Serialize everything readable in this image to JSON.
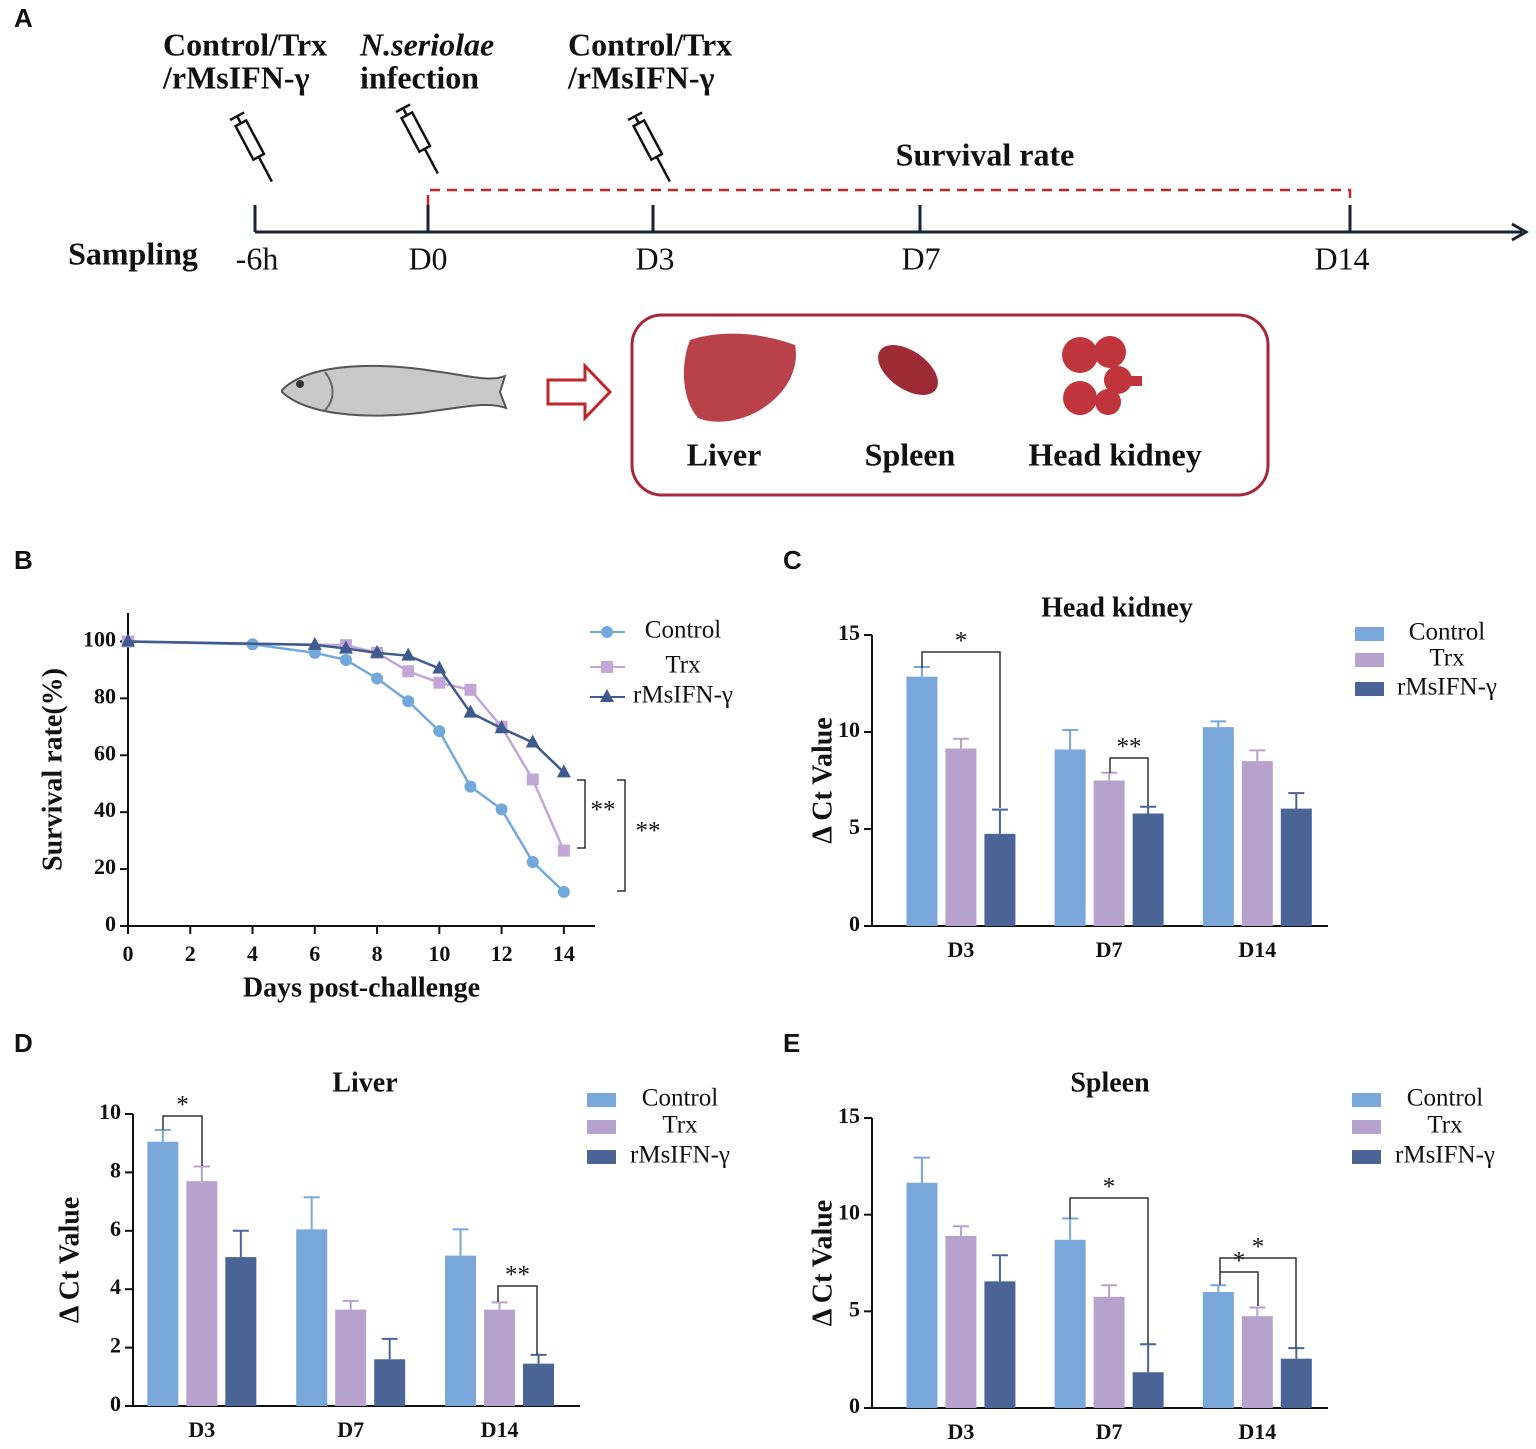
{
  "panel_a": {
    "label": "A",
    "injections": [
      {
        "lines": [
          "Control/Trx",
          "/rMsIFN-γ"
        ]
      },
      {
        "lines": [
          "N.seriolae",
          "infection"
        ]
      },
      {
        "lines": [
          "Control/Trx",
          "/rMsIFN-γ"
        ]
      }
    ],
    "survival_label": "Survival rate",
    "sampling_label": "Sampling",
    "timepoints": [
      "-6h",
      "D0",
      "D3",
      "D7",
      "D14"
    ],
    "organs": [
      "Liver",
      "Spleen",
      "Head kidney"
    ]
  },
  "chart_data": [
    {
      "type": "line",
      "panel": "B",
      "xlabel": "Days post-challenge",
      "ylabel": "Survival rate(%)",
      "xlim": [
        0,
        15
      ],
      "xticks": [
        0,
        2,
        4,
        6,
        8,
        10,
        12,
        14
      ],
      "ylim": [
        0,
        110
      ],
      "yticks": [
        0,
        20,
        40,
        60,
        80,
        100
      ],
      "series": [
        {
          "name": "Control",
          "color": "#72a9dc",
          "marker": "circle",
          "x": [
            0,
            4,
            6,
            7,
            8,
            9,
            10,
            11,
            12,
            13,
            14
          ],
          "values": [
            100,
            99,
            96,
            93.5,
            87,
            79,
            68.5,
            49,
            41,
            22.5,
            12
          ]
        },
        {
          "name": "Trx",
          "color": "#c2a7d6",
          "marker": "square",
          "x": [
            0,
            7,
            8,
            9,
            10,
            11,
            12,
            13,
            14
          ],
          "values": [
            100,
            98.7,
            96,
            89.5,
            85.5,
            83,
            70,
            51.5,
            26.5
          ]
        },
        {
          "name": "rMsIFN-γ",
          "color": "#3f5a8c",
          "marker": "triangle",
          "x": [
            0,
            6,
            7,
            8,
            9,
            10,
            11,
            12,
            13,
            14
          ],
          "values": [
            100,
            98.8,
            97.5,
            96,
            95,
            90.5,
            75,
            69.5,
            64.5,
            54
          ]
        }
      ],
      "annotations": [
        "**",
        "**"
      ]
    },
    {
      "type": "bar",
      "panel": "C",
      "title": "Head kidney",
      "ylabel": "Δ Ct Value",
      "categories": [
        "D3",
        "D7",
        "D14"
      ],
      "ylim": [
        0,
        15
      ],
      "yticks": [
        0,
        5,
        10,
        15
      ],
      "series": [
        {
          "name": "Control",
          "color": "#7aa7d9",
          "values": [
            12.85,
            9.1,
            10.25
          ],
          "error": [
            0.5,
            1.0,
            0.3
          ]
        },
        {
          "name": "Trx",
          "color": "#b6a2cc",
          "values": [
            9.15,
            7.5,
            8.5
          ],
          "error": [
            0.5,
            0.4,
            0.55
          ]
        },
        {
          "name": "rMsIFN-γ",
          "color": "#4a6495",
          "values": [
            4.75,
            5.8,
            6.05
          ],
          "error": [
            1.25,
            0.35,
            0.8
          ]
        }
      ],
      "annotations": [
        "*",
        "**"
      ]
    },
    {
      "type": "bar",
      "panel": "D",
      "title": "Liver",
      "ylabel": "Δ Ct Value",
      "categories": [
        "D3",
        "D7",
        "D14"
      ],
      "ylim": [
        0,
        10
      ],
      "yticks": [
        0,
        2,
        4,
        6,
        8,
        10
      ],
      "series": [
        {
          "name": "Control",
          "color": "#7aa7d9",
          "values": [
            9.05,
            6.05,
            5.15
          ],
          "error": [
            0.4,
            1.1,
            0.9
          ]
        },
        {
          "name": "Trx",
          "color": "#b6a2cc",
          "values": [
            7.7,
            3.3,
            3.3
          ],
          "error": [
            0.5,
            0.3,
            0.25
          ]
        },
        {
          "name": "rMsIFN-γ",
          "color": "#4a6495",
          "values": [
            5.1,
            1.6,
            1.45
          ],
          "error": [
            0.9,
            0.7,
            0.3
          ]
        }
      ],
      "annotations": [
        "*",
        "**"
      ]
    },
    {
      "type": "bar",
      "panel": "E",
      "title": "Spleen",
      "ylabel": "Δ Ct Value",
      "categories": [
        "D3",
        "D7",
        "D14"
      ],
      "ylim": [
        0,
        15
      ],
      "yticks": [
        0,
        5,
        10,
        15
      ],
      "series": [
        {
          "name": "Control",
          "color": "#7aa7d9",
          "values": [
            11.65,
            8.7,
            6.0
          ],
          "error": [
            1.3,
            1.1,
            0.35
          ]
        },
        {
          "name": "Trx",
          "color": "#b6a2cc",
          "values": [
            8.9,
            5.75,
            4.75
          ],
          "error": [
            0.5,
            0.6,
            0.45
          ]
        },
        {
          "name": "rMsIFN-γ",
          "color": "#4a6495",
          "values": [
            6.55,
            1.85,
            2.55
          ],
          "error": [
            1.35,
            1.45,
            0.55
          ]
        }
      ],
      "annotations": [
        "*",
        "*",
        "*"
      ]
    }
  ]
}
